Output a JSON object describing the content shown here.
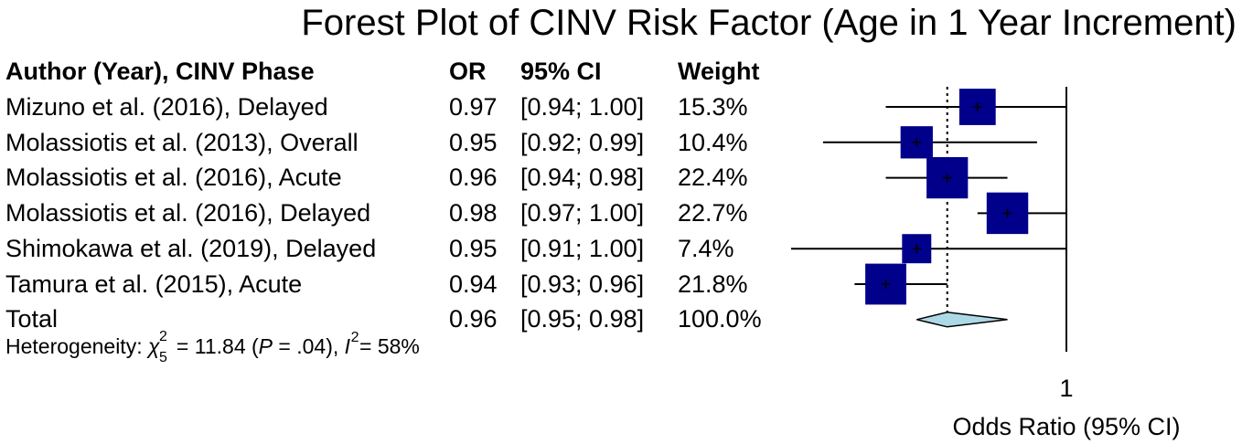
{
  "chart_data": {
    "type": "forest",
    "title": "Forest Plot of CINV Risk Factor (Age in 1 Year Increment)",
    "columns": [
      "Author (Year), CINV Phase",
      "OR",
      "95% CI",
      "Weight"
    ],
    "studies": [
      {
        "label": "Mizuno et al. (2016), Delayed",
        "or": 0.97,
        "lower": 0.94,
        "upper": 1.0,
        "or_text": "0.97",
        "ci_text": "[0.94; 1.00]",
        "weight_text": "15.3%",
        "weight": 15.3
      },
      {
        "label": "Molassiotis et al. (2013), Overall",
        "or": 0.95,
        "lower": 0.92,
        "upper": 0.99,
        "or_text": "0.95",
        "ci_text": "[0.92; 0.99]",
        "weight_text": "10.4%",
        "weight": 10.4
      },
      {
        "label": "Molassiotis et al. (2016), Acute",
        "or": 0.96,
        "lower": 0.94,
        "upper": 0.98,
        "or_text": "0.96",
        "ci_text": "[0.94; 0.98]",
        "weight_text": "22.4%",
        "weight": 22.4
      },
      {
        "label": "Molassiotis et al. (2016), Delayed",
        "or": 0.98,
        "lower": 0.97,
        "upper": 1.0,
        "or_text": "0.98",
        "ci_text": "[0.97; 1.00]",
        "weight_text": "22.7%",
        "weight": 22.7
      },
      {
        "label": "Shimokawa et al. (2019), Delayed",
        "or": 0.95,
        "lower": 0.91,
        "upper": 1.0,
        "or_text": "0.95",
        "ci_text": "[0.91; 1.00]",
        "weight_text": "7.4%",
        "weight": 7.4
      },
      {
        "label": "Tamura et al. (2015), Acute",
        "or": 0.94,
        "lower": 0.93,
        "upper": 0.96,
        "or_text": "0.94",
        "ci_text": "[0.93; 0.96]",
        "weight_text": "21.8%",
        "weight": 21.8
      }
    ],
    "total": {
      "label": "Total",
      "or": 0.96,
      "lower": 0.95,
      "upper": 0.98,
      "or_text": "0.96",
      "ci_text": "[0.95; 0.98]",
      "weight_text": "100.0%"
    },
    "heterogeneity": {
      "prefix": "Heterogeneity: ",
      "chi_symbol": "χ",
      "df": "5",
      "sup": "2",
      "chi_value": " = 11.84 (",
      "p_symbol": "P",
      "p_value": " = .04), ",
      "i_symbol": "I",
      "i_value": "= 58%"
    },
    "x_tick_labels": [
      "1"
    ],
    "xlabel": "Odds Ratio (95% CI)",
    "xlim": [
      0.91,
      1.0
    ],
    "null_value": 1,
    "scale": "log",
    "colors": {
      "box": "#00008b",
      "diamond": "#add8e6",
      "line": "#000000"
    }
  }
}
